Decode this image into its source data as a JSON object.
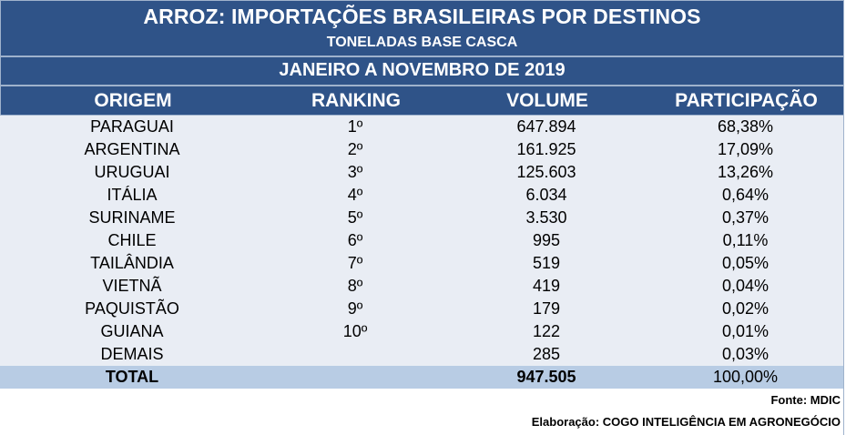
{
  "title": "ARROZ: IMPORTAÇÕES BRASILEIRAS POR DESTINOS",
  "subtitle": "TONELADAS BASE CASCA",
  "period": "JANEIRO A NOVEMBRO DE 2019",
  "headers": {
    "origem": "ORIGEM",
    "ranking": "RANKING",
    "volume": "VOLUME",
    "participacao": "PARTICIPAÇÃO"
  },
  "rows": [
    {
      "origem": "PARAGUAI",
      "ranking": "1º",
      "volume": "647.894",
      "participacao": "68,38%"
    },
    {
      "origem": "ARGENTINA",
      "ranking": "2º",
      "volume": "161.925",
      "participacao": "17,09%"
    },
    {
      "origem": "URUGUAI",
      "ranking": "3º",
      "volume": "125.603",
      "participacao": "13,26%"
    },
    {
      "origem": "ITÁLIA",
      "ranking": "4º",
      "volume": "6.034",
      "participacao": "0,64%"
    },
    {
      "origem": "SURINAME",
      "ranking": "5º",
      "volume": "3.530",
      "participacao": "0,37%"
    },
    {
      "origem": "CHILE",
      "ranking": "6º",
      "volume": "995",
      "participacao": "0,11%"
    },
    {
      "origem": "TAILÂNDIA",
      "ranking": "7º",
      "volume": "519",
      "participacao": "0,05%"
    },
    {
      "origem": "VIETNÃ",
      "ranking": "8º",
      "volume": "419",
      "participacao": "0,04%"
    },
    {
      "origem": "PAQUISTÃO",
      "ranking": "9º",
      "volume": "179",
      "participacao": "0,02%"
    },
    {
      "origem": "GUIANA",
      "ranking": "10º",
      "volume": "122",
      "participacao": "0,01%"
    },
    {
      "origem": "DEMAIS",
      "ranking": "",
      "volume": "285",
      "participacao": "0,03%"
    }
  ],
  "total": {
    "origem": "TOTAL",
    "ranking": "",
    "volume": "947.505",
    "participacao": "100,00%"
  },
  "source": "Fonte: MDIC",
  "credit": "Elaboração: COGO INTELIGÊNCIA EM AGRONEGÓCIO",
  "colors": {
    "header_bg": "#2f5388",
    "row_bg": "#e9edf4",
    "total_bg": "#b8cce4"
  }
}
